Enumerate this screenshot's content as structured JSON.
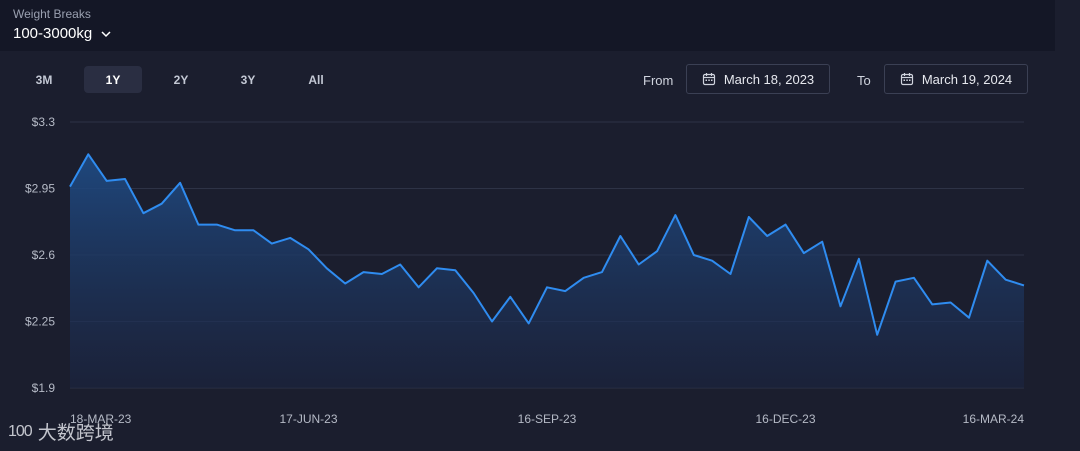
{
  "header": {
    "weight_breaks_label": "Weight Breaks",
    "weight_breaks_value": "100-3000kg"
  },
  "ranges": [
    {
      "label": "3M",
      "active": false
    },
    {
      "label": "1Y",
      "active": true
    },
    {
      "label": "2Y",
      "active": false
    },
    {
      "label": "3Y",
      "active": false
    },
    {
      "label": "All",
      "active": false
    }
  ],
  "date_range": {
    "from_label": "From",
    "from_value": "March 18, 2023",
    "to_label": "To",
    "to_value": "March 19, 2024"
  },
  "watermark": {
    "logo_text": "100",
    "brand_text": "大数跨境"
  },
  "colors": {
    "line": "#2f8cf0",
    "grid": "#2e3346",
    "axis_text": "#b5bac6",
    "area_top": "#1f4c86",
    "area_bottom": "#1b2440"
  },
  "chart_data": {
    "type": "area",
    "title": "",
    "xlabel": "",
    "ylabel": "",
    "ylim": [
      1.9,
      3.3
    ],
    "y_ticks": [
      {
        "value": 3.3,
        "label": "$3.3"
      },
      {
        "value": 2.95,
        "label": "$2.95"
      },
      {
        "value": 2.6,
        "label": "$2.6"
      },
      {
        "value": 2.25,
        "label": "$2.25"
      },
      {
        "value": 1.9,
        "label": "$1.9"
      }
    ],
    "x_ticks": [
      {
        "index": 0,
        "label": "18-MAR-23"
      },
      {
        "index": 13,
        "label": "17-JUN-23"
      },
      {
        "index": 26,
        "label": "16-SEP-23"
      },
      {
        "index": 39,
        "label": "16-DEC-23"
      },
      {
        "index": 52,
        "label": "16-MAR-24"
      }
    ],
    "grid": true,
    "series": [
      {
        "values": [
          2.96,
          3.13,
          2.99,
          3.0,
          2.82,
          2.87,
          2.98,
          2.76,
          2.76,
          2.73,
          2.73,
          2.66,
          2.69,
          2.63,
          2.53,
          2.45,
          2.51,
          2.5,
          2.55,
          2.43,
          2.53,
          2.52,
          2.4,
          2.25,
          2.38,
          2.24,
          2.43,
          2.41,
          2.48,
          2.51,
          2.7,
          2.55,
          2.62,
          2.81,
          2.6,
          2.57,
          2.5,
          2.8,
          2.7,
          2.76,
          2.61,
          2.67,
          2.33,
          2.58,
          2.18,
          2.46,
          2.48,
          2.34,
          2.35,
          2.27,
          2.57,
          2.47,
          2.44
        ]
      }
    ]
  }
}
